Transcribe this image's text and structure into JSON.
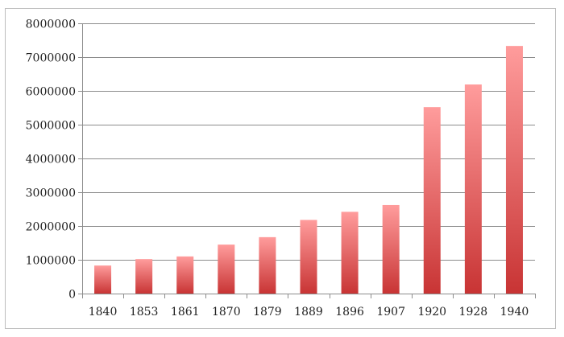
{
  "chart_data": {
    "type": "bar",
    "categories": [
      "1840",
      "1853",
      "1861",
      "1870",
      "1879",
      "1889",
      "1896",
      "1907",
      "1920",
      "1928",
      "1940"
    ],
    "values": [
      830000,
      1020000,
      1100000,
      1450000,
      1670000,
      2180000,
      2420000,
      2620000,
      5520000,
      6190000,
      7330000
    ],
    "ylim": [
      0,
      8000000
    ],
    "yticks": [
      "0",
      "1000000",
      "2000000",
      "3000000",
      "4000000",
      "5000000",
      "6000000",
      "7000000",
      "8000000"
    ],
    "grid": true,
    "legend": "none",
    "bar_color_top": "#ff9c9c",
    "bar_color_bottom": "#c83434",
    "gridline_color": "#8c8c8c"
  }
}
